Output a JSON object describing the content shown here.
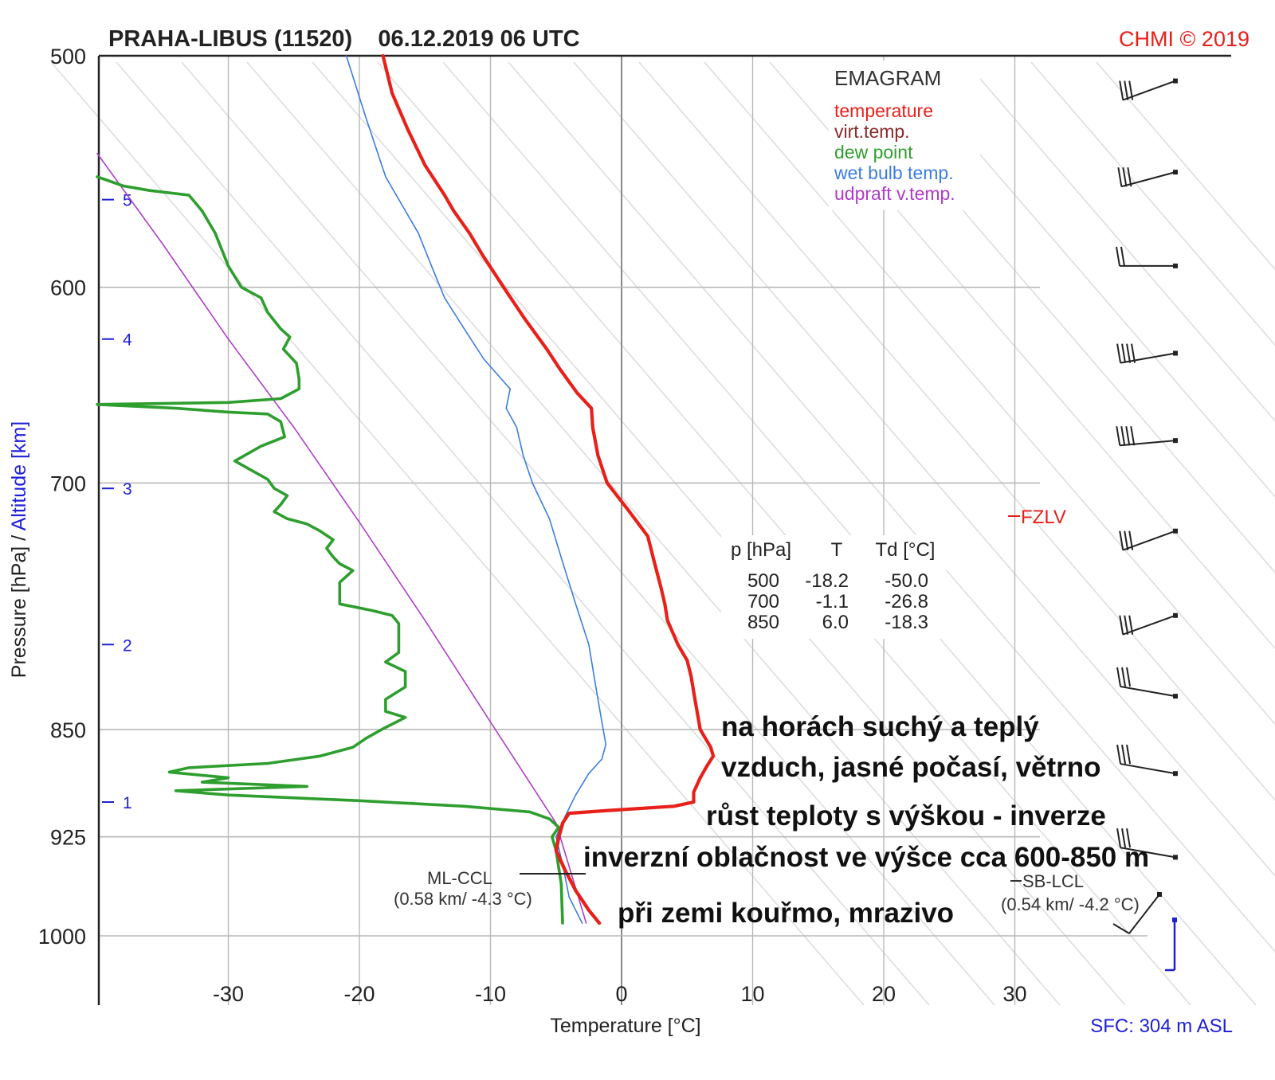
{
  "chart_data": {
    "type": "line",
    "title": "PRAHA-LIBUS (11520)    06.12.2019 06 UTC",
    "copyright": "CHMI © 2019",
    "xlabel": "Temperature [°C]",
    "ylabel_pressure": "Pressure [hPa]",
    "ylabel_separator": " / ",
    "ylabel_altitude": "Altitude [km]",
    "xlim": [
      -40,
      40
    ],
    "ylim_hpa": [
      1030,
      500
    ],
    "x_scale": "linear",
    "y_scale": "log-pressure (emagram)",
    "grid": true,
    "x_ticks": [
      -30,
      -20,
      -10,
      0,
      10,
      20,
      30
    ],
    "pressure_ticks": [
      {
        "p": 500,
        "label": "500"
      },
      {
        "p": 600,
        "label": "600"
      },
      {
        "p": 700,
        "label": "700"
      },
      {
        "p": 850,
        "label": "850"
      },
      {
        "p": 925,
        "label": "925"
      },
      {
        "p": 1000,
        "label": "1000"
      }
    ],
    "altitude_ticks": [
      {
        "p": 560,
        "label": "5"
      },
      {
        "p": 625,
        "label": "4"
      },
      {
        "p": 703,
        "label": "3"
      },
      {
        "p": 795,
        "label": "2"
      },
      {
        "p": 900,
        "label": "1"
      }
    ],
    "legend": {
      "title": "EMAGRAM",
      "position": "top-right",
      "items": [
        {
          "label": "temperature",
          "color": "#e8201a"
        },
        {
          "label": "virt.temp.",
          "color": "#8a2a2a"
        },
        {
          "label": "dew point",
          "color": "#2e9e2e"
        },
        {
          "label": "wet bulb temp.",
          "color": "#3b7de0"
        },
        {
          "label": "udpraft v.temp.",
          "color": "#b03cc8"
        }
      ]
    },
    "series": [
      {
        "name": "temperature",
        "color": "#e8201a",
        "points": [
          [
            -18.2,
            500
          ],
          [
            -17.5,
            515
          ],
          [
            -16.3,
            530
          ],
          [
            -15.0,
            545
          ],
          [
            -13.5,
            558
          ],
          [
            -12.8,
            565
          ],
          [
            -11.6,
            575
          ],
          [
            -10.6,
            585
          ],
          [
            -9.0,
            600
          ],
          [
            -7.4,
            615
          ],
          [
            -5.7,
            630
          ],
          [
            -4.7,
            640
          ],
          [
            -3.4,
            652
          ],
          [
            -2.3,
            660
          ],
          [
            -2.2,
            670
          ],
          [
            -1.8,
            685
          ],
          [
            -1.1,
            700
          ],
          [
            0.5,
            715
          ],
          [
            2.0,
            730
          ],
          [
            2.5,
            745
          ],
          [
            3.0,
            760
          ],
          [
            3.3,
            770
          ],
          [
            3.5,
            780
          ],
          [
            4.3,
            795
          ],
          [
            5.0,
            805
          ],
          [
            5.3,
            815
          ],
          [
            5.6,
            830
          ],
          [
            6.0,
            850
          ],
          [
            6.8,
            862
          ],
          [
            7.0,
            868
          ],
          [
            6.5,
            875
          ],
          [
            6.0,
            883
          ],
          [
            5.5,
            893
          ],
          [
            5.5,
            900
          ],
          [
            4.0,
            903
          ],
          [
            -1.0,
            906
          ],
          [
            -4.0,
            908
          ],
          [
            -4.5,
            915
          ],
          [
            -4.8,
            925
          ],
          [
            -5.0,
            935
          ],
          [
            -4.3,
            950
          ],
          [
            -3.5,
            965
          ],
          [
            -2.5,
            980
          ],
          [
            -1.7,
            990
          ]
        ]
      },
      {
        "name": "virt.temp.",
        "color": "#8a2a2a",
        "points": [
          [
            -4.0,
            908
          ],
          [
            -4.4,
            915
          ],
          [
            -4.7,
            925
          ],
          [
            -4.9,
            935
          ],
          [
            -4.2,
            950
          ],
          [
            -3.4,
            965
          ],
          [
            -2.4,
            980
          ],
          [
            -1.6,
            990
          ]
        ]
      },
      {
        "name": "dew point",
        "color": "#2e9e2e",
        "points": [
          [
            -40.0,
            550
          ],
          [
            -38.0,
            554
          ],
          [
            -36.0,
            556
          ],
          [
            -33.0,
            558
          ],
          [
            -32.0,
            565
          ],
          [
            -31.0,
            575
          ],
          [
            -30.0,
            590
          ],
          [
            -29.0,
            600
          ],
          [
            -27.5,
            605
          ],
          [
            -27.0,
            612
          ],
          [
            -26.0,
            620
          ],
          [
            -25.3,
            624
          ],
          [
            -25.8,
            630
          ],
          [
            -24.8,
            637
          ],
          [
            -24.6,
            645
          ],
          [
            -24.6,
            650
          ],
          [
            -26.0,
            655
          ],
          [
            -30.0,
            657
          ],
          [
            -40.0,
            658
          ],
          [
            -34.0,
            660
          ],
          [
            -30.0,
            662
          ],
          [
            -27.0,
            663
          ],
          [
            -26.0,
            667
          ],
          [
            -25.7,
            675
          ],
          [
            -27.5,
            680
          ],
          [
            -29.5,
            688
          ],
          [
            -28.5,
            692
          ],
          [
            -27.0,
            698
          ],
          [
            -26.5,
            703
          ],
          [
            -25.5,
            707
          ],
          [
            -26.0,
            712
          ],
          [
            -26.5,
            716
          ],
          [
            -25.5,
            720
          ],
          [
            -24.0,
            723
          ],
          [
            -23.0,
            727
          ],
          [
            -22.0,
            732
          ],
          [
            -22.5,
            737
          ],
          [
            -22.0,
            742
          ],
          [
            -21.5,
            746
          ],
          [
            -20.5,
            750
          ],
          [
            -21.5,
            757
          ],
          [
            -21.5,
            770
          ],
          [
            -19.0,
            774
          ],
          [
            -17.5,
            777
          ],
          [
            -17.0,
            782
          ],
          [
            -17.0,
            800
          ],
          [
            -18.0,
            806
          ],
          [
            -16.5,
            812
          ],
          [
            -16.5,
            822
          ],
          [
            -18.0,
            830
          ],
          [
            -18.0,
            838
          ],
          [
            -16.5,
            842
          ],
          [
            -18.3,
            850
          ],
          [
            -19.5,
            856
          ],
          [
            -20.5,
            862
          ],
          [
            -23.0,
            868
          ],
          [
            -27.0,
            873
          ],
          [
            -33.0,
            876
          ],
          [
            -34.5,
            879
          ],
          [
            -30.0,
            883
          ],
          [
            -32.0,
            886
          ],
          [
            -24.0,
            889
          ],
          [
            -34.0,
            892
          ],
          [
            -30.0,
            895
          ],
          [
            -20.0,
            899
          ],
          [
            -12.0,
            903
          ],
          [
            -7.0,
            907
          ],
          [
            -5.5,
            912
          ],
          [
            -4.8,
            918
          ],
          [
            -5.3,
            925
          ],
          [
            -5.0,
            935
          ],
          [
            -4.6,
            960
          ],
          [
            -4.5,
            990
          ]
        ]
      },
      {
        "name": "wet bulb temp.",
        "color": "#3b7de0",
        "points": [
          [
            -21.0,
            500
          ],
          [
            -19.5,
            525
          ],
          [
            -18.0,
            550
          ],
          [
            -15.5,
            575
          ],
          [
            -14.5,
            590
          ],
          [
            -13.5,
            605
          ],
          [
            -12.0,
            620
          ],
          [
            -10.5,
            635
          ],
          [
            -8.5,
            650
          ],
          [
            -8.8,
            660
          ],
          [
            -8.0,
            670
          ],
          [
            -7.5,
            685
          ],
          [
            -6.8,
            700
          ],
          [
            -5.5,
            720
          ],
          [
            -4.5,
            745
          ],
          [
            -3.5,
            770
          ],
          [
            -2.5,
            795
          ],
          [
            -2.0,
            820
          ],
          [
            -1.5,
            845
          ],
          [
            -1.2,
            860
          ],
          [
            -1.5,
            870
          ],
          [
            -2.5,
            880
          ],
          [
            -3.5,
            895
          ],
          [
            -4.3,
            910
          ],
          [
            -5.0,
            925
          ],
          [
            -4.5,
            945
          ],
          [
            -4.0,
            970
          ],
          [
            -3.0,
            990
          ]
        ]
      },
      {
        "name": "udpraft v.temp.",
        "color": "#b03cc8",
        "points": [
          [
            -40.0,
            540
          ],
          [
            -35.0,
            580
          ],
          [
            -30.0,
            625
          ],
          [
            -25.0,
            670
          ],
          [
            -20.0,
            722
          ],
          [
            -15.0,
            780
          ],
          [
            -10.0,
            845
          ],
          [
            -5.0,
            915
          ],
          [
            -2.7,
            990
          ]
        ]
      }
    ],
    "levels_table": {
      "header": [
        "p [hPa]",
        "T",
        "Td [°C]"
      ],
      "rows": [
        [
          "500",
          "-18.2",
          "-50.0"
        ],
        [
          "700",
          "-1.1",
          "-26.8"
        ],
        [
          "850",
          "6.0",
          "-18.3"
        ]
      ]
    },
    "annotations": [
      {
        "text": "na horách suchý a teplý"
      },
      {
        "text": "vzduch, jasné počasí, větrno"
      },
      {
        "text": "růst teploty s výškou - inverze"
      },
      {
        "text": "inverzní oblačnost ve výšce cca 600-850 m"
      },
      {
        "text": "při zemi kouřmo, mrazivo"
      }
    ],
    "ml_ccl": {
      "label": "ML-CCL",
      "detail": "(0.58 km/ -4.3 °C)",
      "p": 940,
      "t": -4.3
    },
    "sb_lcl": {
      "label": "SB-LCL",
      "detail": "(0.54 km/ -4.2 °C)",
      "p": 935
    },
    "fzlv": {
      "label": "FZLV",
      "p": 714
    },
    "surface": "SFC: 304 m ASL",
    "wind_barbs": [
      {
        "p": 510,
        "dir_deg": 250,
        "speed_kt": 30
      },
      {
        "p": 548,
        "dir_deg": 255,
        "speed_kt": 30
      },
      {
        "p": 590,
        "dir_deg": 270,
        "speed_kt": 20
      },
      {
        "p": 632,
        "dir_deg": 260,
        "speed_kt": 35
      },
      {
        "p": 677,
        "dir_deg": 265,
        "speed_kt": 35
      },
      {
        "p": 727,
        "dir_deg": 250,
        "speed_kt": 30
      },
      {
        "p": 777,
        "dir_deg": 250,
        "speed_kt": 30
      },
      {
        "p": 828,
        "dir_deg": 280,
        "speed_kt": 25
      },
      {
        "p": 880,
        "dir_deg": 280,
        "speed_kt": 25
      },
      {
        "p": 940,
        "dir_deg": 280,
        "speed_kt": 25
      },
      {
        "p": 1000,
        "dir_deg": 220,
        "speed_kt": 10
      }
    ],
    "colors": {
      "temperature": "#e8201a",
      "virt_temp": "#8a2a2a",
      "dew_point": "#2e9e2e",
      "wet_bulb": "#3b7de0",
      "updraft": "#b03cc8",
      "grid": "#b8b8b8",
      "dry_adiabat": "#dcdcdc",
      "altitude": "#1f1fd8"
    }
  }
}
